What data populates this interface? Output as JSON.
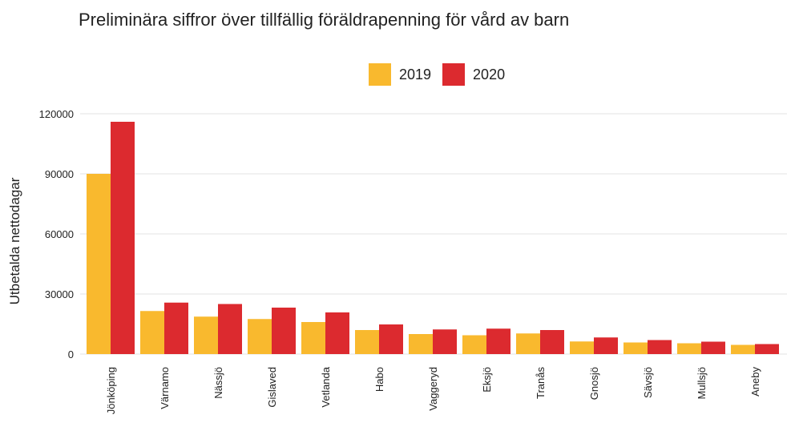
{
  "chart_data": {
    "type": "bar",
    "title": "Preliminära siffror över tillfällig föräldrapenning för vård av barn",
    "xlabel": "",
    "ylabel": "Utbetalda nettodagar",
    "ylim": [
      0,
      120000
    ],
    "yticks": [
      0,
      30000,
      60000,
      90000,
      120000
    ],
    "ytick_labels": [
      "0",
      "30000",
      "60000",
      "90000",
      "120000"
    ],
    "grid": true,
    "legend_position": "top-center",
    "categories": [
      "Jönköping",
      "Värnamo",
      "Nässjö",
      "Gislaved",
      "Vetlanda",
      "Habo",
      "Vaggeryd",
      "Eksjö",
      "Tranås",
      "Gnosjö",
      "Sävsjö",
      "Mullsjö",
      "Aneby"
    ],
    "series": [
      {
        "name": "2019",
        "color": "#F9B92E",
        "values": [
          90000,
          21500,
          18700,
          17500,
          16000,
          12000,
          10000,
          9400,
          10300,
          6300,
          5800,
          5400,
          4600
        ]
      },
      {
        "name": "2020",
        "color": "#DC2A2F",
        "values": [
          116000,
          25700,
          25000,
          23200,
          20800,
          14800,
          12300,
          12700,
          12000,
          8300,
          7000,
          6200,
          5000
        ]
      }
    ]
  }
}
